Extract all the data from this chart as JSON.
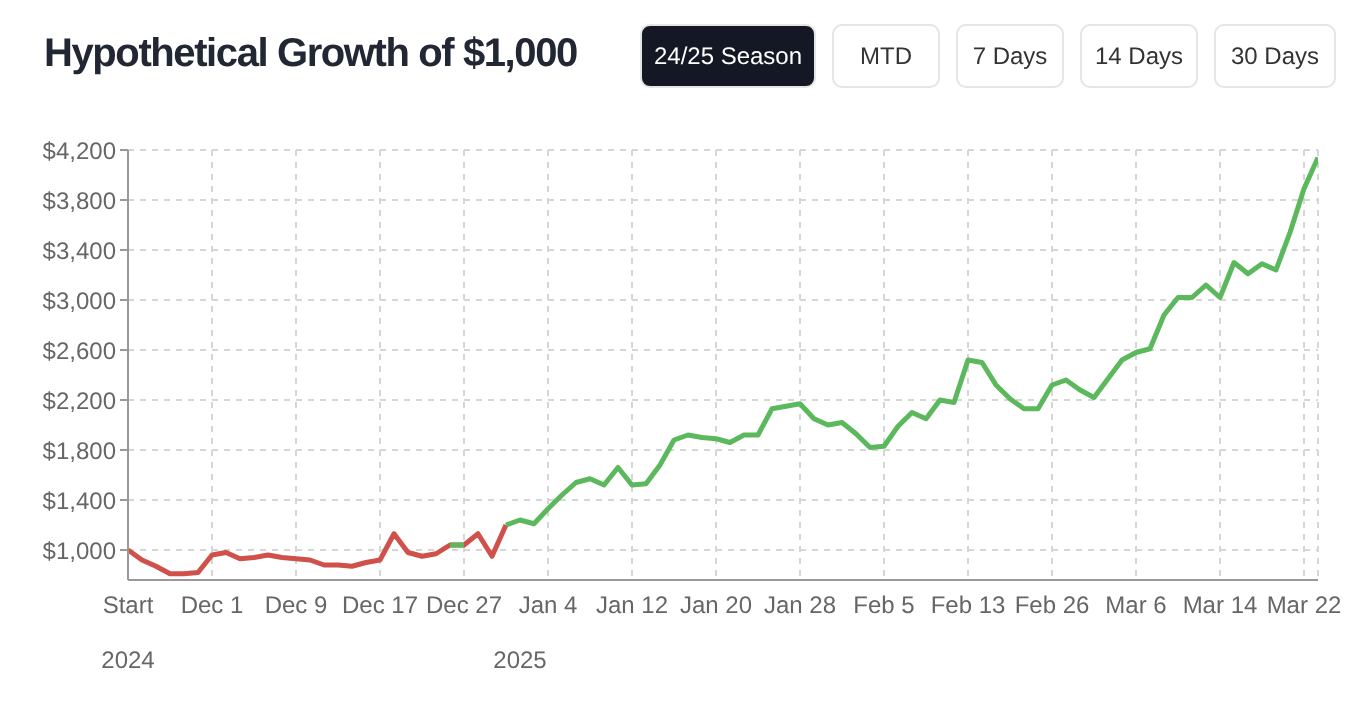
{
  "chart_data": {
    "type": "line",
    "title": "Hypothetical Growth of $1,000",
    "annotations": [
      "24/25 Season",
      "MTD",
      "7 Days",
      "14 Days",
      "30 Days",
      "2024",
      "2025"
    ],
    "categories": [
      "Start",
      null,
      null,
      null,
      null,
      null,
      "Dec 1",
      null,
      null,
      null,
      null,
      null,
      "Dec 9",
      null,
      null,
      null,
      null,
      null,
      "Dec 17",
      null,
      null,
      null,
      null,
      null,
      "Dec 27",
      null,
      null,
      null,
      null,
      null,
      "Jan 4",
      null,
      null,
      null,
      null,
      null,
      "Jan 12",
      null,
      null,
      null,
      null,
      null,
      "Jan 20",
      null,
      null,
      null,
      null,
      null,
      "Jan 28",
      null,
      null,
      null,
      null,
      null,
      "Feb 5",
      null,
      null,
      null,
      null,
      null,
      "Feb 13",
      null,
      null,
      null,
      null,
      null,
      "Feb 26",
      null,
      null,
      null,
      null,
      null,
      "Mar 6",
      null,
      null,
      null,
      null,
      null,
      "Mar 14",
      null,
      null,
      null,
      null,
      null,
      "Mar 22",
      null
    ],
    "series": [
      {
        "color": "#d0504a",
        "values": [
          1000,
          920,
          870,
          810,
          810,
          820,
          960,
          980,
          930,
          940,
          960,
          940,
          930,
          920,
          880,
          880,
          870,
          900,
          920,
          1130,
          980,
          950,
          970,
          1040,
          1040,
          1130,
          950,
          1200,
          null,
          null,
          null,
          null,
          null,
          null,
          null,
          null,
          null,
          null,
          null,
          null,
          null,
          null,
          null,
          null,
          null,
          null,
          null,
          null,
          null,
          null,
          null,
          null,
          null,
          null,
          null,
          null,
          null,
          null,
          null,
          null,
          null,
          null,
          null,
          null,
          null,
          null,
          null,
          null,
          null,
          null,
          null,
          null,
          null,
          null,
          null,
          null,
          null,
          null,
          null,
          null,
          null,
          null,
          null,
          null,
          null,
          null
        ]
      },
      {
        "color": "#5cb85c",
        "values": [
          null,
          null,
          null,
          null,
          null,
          null,
          null,
          null,
          null,
          null,
          null,
          null,
          null,
          null,
          null,
          null,
          null,
          null,
          null,
          null,
          null,
          null,
          null,
          1040,
          1040,
          null,
          null,
          1200,
          1240,
          1210,
          1330,
          1440,
          1540,
          1570,
          1520,
          1660,
          1520,
          1530,
          1680,
          1880,
          1920,
          1900,
          1890,
          1860,
          1920,
          1920,
          2130,
          2150,
          2170,
          2050,
          2000,
          2020,
          1930,
          1820,
          1830,
          1990,
          2100,
          2050,
          2200,
          2180,
          2520,
          2500,
          2320,
          2210,
          2130,
          2130,
          2320,
          2360,
          2280,
          2220,
          2370,
          2520,
          2580,
          2610,
          2880,
          3020,
          3020,
          3120,
          3020,
          3300,
          3210,
          3290,
          3240,
          3540,
          3890,
          4140
        ]
      }
    ],
    "ylim": [
      760,
      4200
    ],
    "yticks": [
      {
        "value": 1000,
        "label": "$1,000"
      },
      {
        "value": 1400,
        "label": "$1,400"
      },
      {
        "value": 1800,
        "label": "$1,800"
      },
      {
        "value": 2200,
        "label": "$2,200"
      },
      {
        "value": 2600,
        "label": "$2,600"
      },
      {
        "value": 3000,
        "label": "$3,000"
      },
      {
        "value": 3400,
        "label": "$3,400"
      },
      {
        "value": 3800,
        "label": "$3,800"
      },
      {
        "value": 4200,
        "label": "$4,200"
      }
    ],
    "grid": true,
    "marker": "none",
    "line_style": "solid"
  }
}
